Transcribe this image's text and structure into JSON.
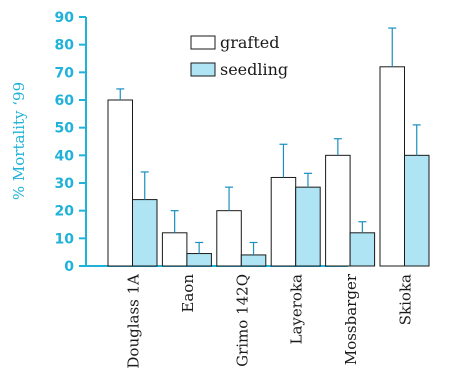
{
  "colors": {
    "axis": "#20b2d8",
    "grafted_fill": "#ffffff",
    "seedling_fill": "#aee4f4",
    "bar_stroke": "#1a1a1a",
    "error_bar": "#1a8fc0",
    "text": "#1a1a1a"
  },
  "chart_data": {
    "type": "bar",
    "ylabel": "% Mortality ‘99",
    "ylim": [
      0,
      90
    ],
    "yticks": [
      0,
      10,
      20,
      30,
      40,
      50,
      60,
      70,
      80,
      90
    ],
    "categories": [
      "Douglass 1A",
      "Eaon",
      "Grimo 142Q",
      "Layeroka",
      "Mossbarger",
      "Skioka"
    ],
    "series": [
      {
        "name": "grafted",
        "values": [
          60,
          12,
          20,
          32,
          40,
          72
        ],
        "errors": [
          4,
          8,
          8.5,
          12,
          6,
          14
        ]
      },
      {
        "name": "seedling",
        "values": [
          24,
          4.5,
          4,
          28.5,
          12,
          40
        ],
        "errors": [
          10,
          4,
          4.5,
          5,
          4,
          11
        ]
      }
    ],
    "legend_position": "top-center",
    "grid": false
  }
}
